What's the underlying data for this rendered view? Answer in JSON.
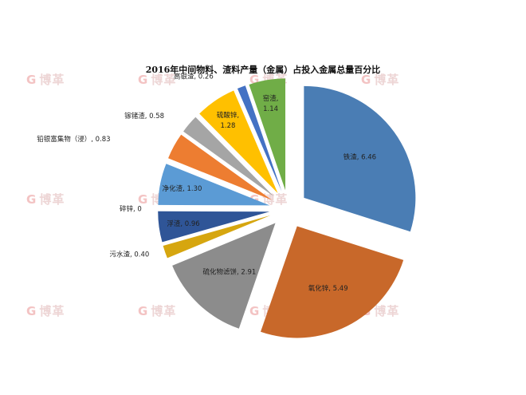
{
  "watermark": {
    "logo_letter": "G",
    "text": "博革"
  },
  "chart_data": {
    "type": "pie",
    "title": "2016年中间物料、渣料产量（金属）占投入金属总量百分比",
    "exploded": true,
    "start_angle": "top, clockwise",
    "slices": [
      {
        "label": "铁渣",
        "value": 6.46,
        "display": "6.46",
        "color": "#4a7db4"
      },
      {
        "label": "氧化锌",
        "value": 5.49,
        "display": "5.49",
        "color": "#c8682a"
      },
      {
        "label": "硫化物滤饼",
        "value": 2.91,
        "display": "2.91",
        "color": "#8c8c8c"
      },
      {
        "label": "污水渣",
        "value": 0.4,
        "display": "0.40",
        "color": "#d6a60f"
      },
      {
        "label": "浮渣",
        "value": 0.96,
        "display": "0.96",
        "color": "#2f5597"
      },
      {
        "label": "碎锌",
        "value": 0,
        "display": "0",
        "color": "#5b9bd5"
      },
      {
        "label": "净化渣",
        "value": 1.3,
        "display": "1.30",
        "color": "#5b9bd5"
      },
      {
        "label": "铅银富集物（浸）",
        "value": 0.83,
        "display": "0.83",
        "color": "#ed7d31"
      },
      {
        "label": "镓锗渣",
        "value": 0.58,
        "display": "0.58",
        "color": "#a5a5a5"
      },
      {
        "label": "硫酸锌",
        "value": 1.28,
        "display": "1.28",
        "color": "#ffc000"
      },
      {
        "label": "高银渣",
        "value": 0.26,
        "display": "0.26",
        "color": "#4472c4"
      },
      {
        "label": "窑渣",
        "value": 1.14,
        "display": "1.14",
        "color": "#70ad47"
      }
    ]
  }
}
